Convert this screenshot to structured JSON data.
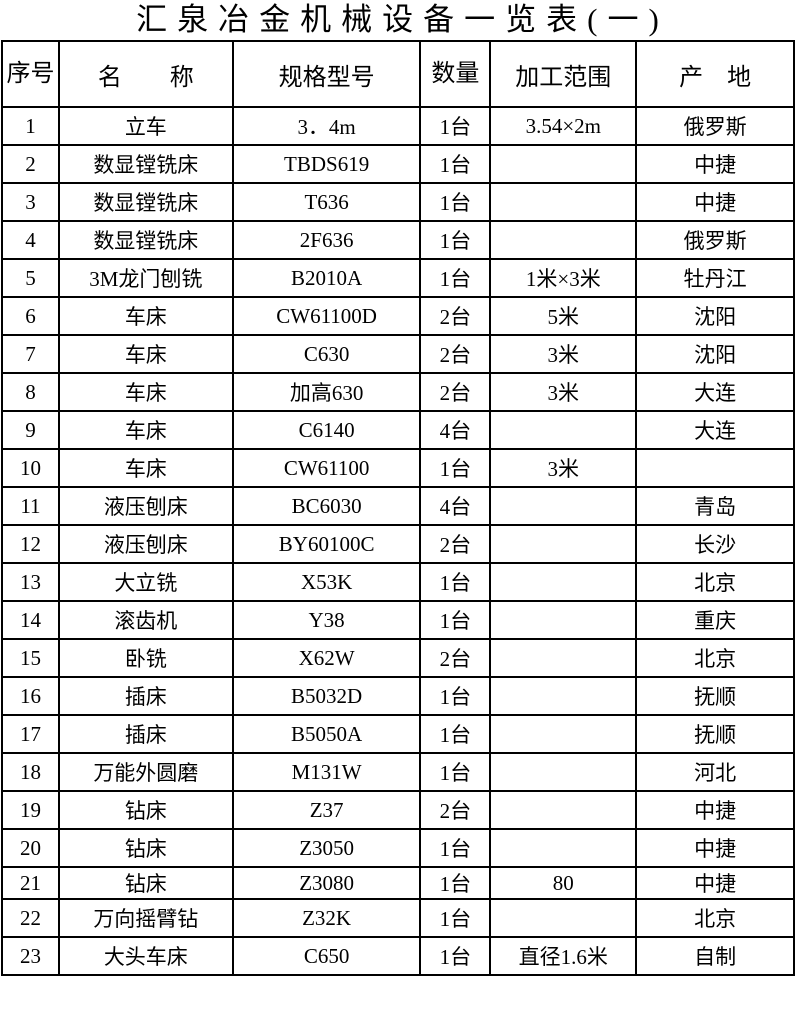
{
  "title": "汇泉冶金机械设备一览表(一)",
  "headers": {
    "no": "序号",
    "name": "名　　称",
    "model": "规格型号",
    "qty": "数量",
    "range": "加工范围",
    "origin": "产　地"
  },
  "rows": [
    {
      "no": "1",
      "name": "立车",
      "model": "3．4m",
      "qty": "1台",
      "range": "3.54×2m",
      "origin": "俄罗斯"
    },
    {
      "no": "2",
      "name": "数显镗铣床",
      "model": "TBDS619",
      "qty": "1台",
      "range": "",
      "origin": "中捷"
    },
    {
      "no": "3",
      "name": "数显镗铣床",
      "model": "T636",
      "qty": "1台",
      "range": "",
      "origin": "中捷"
    },
    {
      "no": "4",
      "name": "数显镗铣床",
      "model": "2F636",
      "qty": "1台",
      "range": "",
      "origin": "俄罗斯"
    },
    {
      "no": "5",
      "name": "3M龙门刨铣",
      "model": "B2010A",
      "qty": "1台",
      "range": "1米×3米",
      "origin": "牡丹江"
    },
    {
      "no": "6",
      "name": "车床",
      "model": "CW61100D",
      "qty": "2台",
      "range": "5米",
      "origin": "沈阳"
    },
    {
      "no": "7",
      "name": "车床",
      "model": "C630",
      "qty": "2台",
      "range": "3米",
      "origin": "沈阳"
    },
    {
      "no": "8",
      "name": "车床",
      "model": "加高630",
      "qty": "2台",
      "range": "3米",
      "origin": "大连"
    },
    {
      "no": "9",
      "name": "车床",
      "model": "C6140",
      "qty": "4台",
      "range": "",
      "origin": "大连"
    },
    {
      "no": "10",
      "name": "车床",
      "model": "CW61100",
      "qty": "1台",
      "range": "3米",
      "origin": ""
    },
    {
      "no": "11",
      "name": "液压刨床",
      "model": "BC6030",
      "qty": "4台",
      "range": "",
      "origin": "青岛"
    },
    {
      "no": "12",
      "name": "液压刨床",
      "model": "BY60100C",
      "qty": "2台",
      "range": "",
      "origin": "长沙"
    },
    {
      "no": "13",
      "name": "大立铣",
      "model": "X53K",
      "qty": "1台",
      "range": "",
      "origin": "北京"
    },
    {
      "no": "14",
      "name": "滚齿机",
      "model": "Y38",
      "qty": "1台",
      "range": "",
      "origin": "重庆"
    },
    {
      "no": "15",
      "name": "卧铣",
      "model": "X62W",
      "qty": "2台",
      "range": "",
      "origin": "北京"
    },
    {
      "no": "16",
      "name": "插床",
      "model": "B5032D",
      "qty": "1台",
      "range": "",
      "origin": "抚顺"
    },
    {
      "no": "17",
      "name": "插床",
      "model": "B5050A",
      "qty": "1台",
      "range": "",
      "origin": "抚顺"
    },
    {
      "no": "18",
      "name": "万能外圆磨",
      "model": "M131W",
      "qty": "1台",
      "range": "",
      "origin": "河北"
    },
    {
      "no": "19",
      "name": "钻床",
      "model": "Z37",
      "qty": "2台",
      "range": "",
      "origin": "中捷"
    },
    {
      "no": "20",
      "name": "钻床",
      "model": "Z3050",
      "qty": "1台",
      "range": "",
      "origin": "中捷"
    },
    {
      "no": "21",
      "name": "钻床",
      "model": "Z3080",
      "qty": "1台",
      "range": "80",
      "origin": "中捷"
    },
    {
      "no": "22",
      "name": "万向摇臂钻",
      "model": "Z32K",
      "qty": "1台",
      "range": "",
      "origin": "北京"
    },
    {
      "no": "23",
      "name": "大头车床",
      "model": "C650",
      "qty": "1台",
      "range": "直径1.6米",
      "origin": "自制"
    }
  ]
}
